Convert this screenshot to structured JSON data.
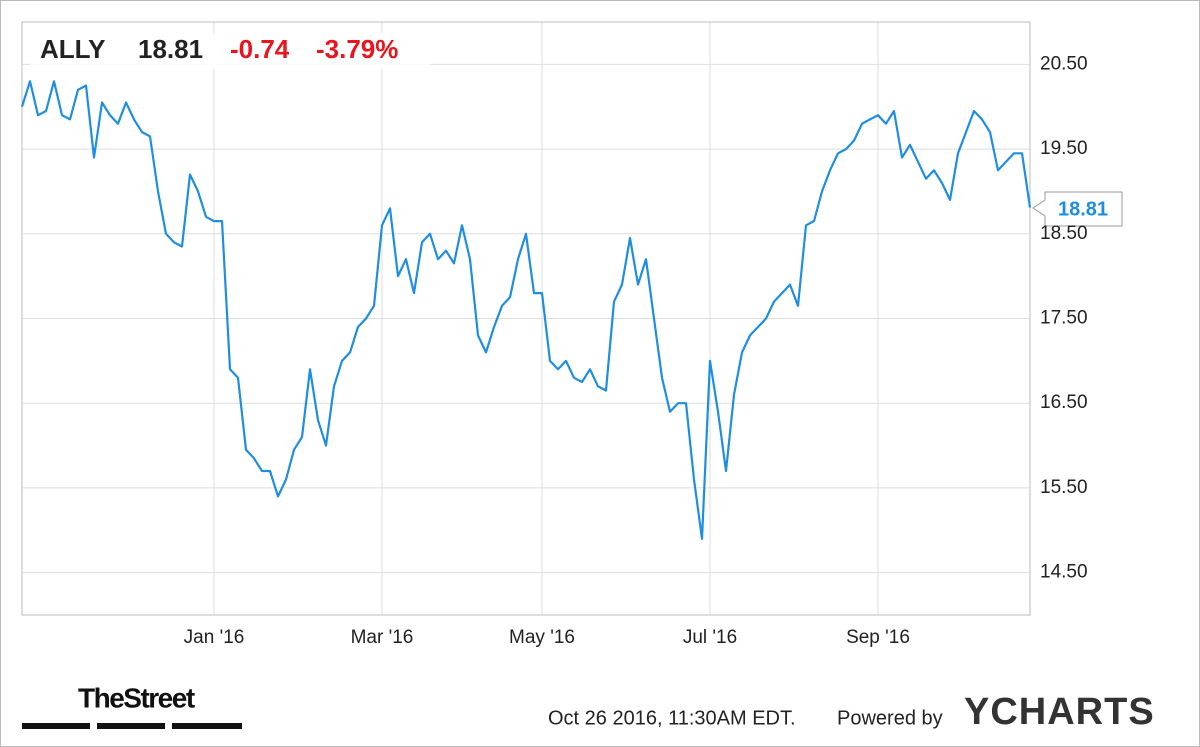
{
  "chart_data": {
    "type": "line",
    "header": {
      "change": "-0.74",
      "change_percent": "-3.79%"
    },
    "categories": [
      null,
      null,
      null,
      null,
      null,
      null,
      null,
      null,
      null,
      null,
      null,
      null,
      null,
      null,
      null,
      null,
      null,
      null,
      null,
      null,
      null,
      null,
      null,
      null,
      "Jan '16",
      null,
      null,
      null,
      null,
      null,
      null,
      null,
      null,
      null,
      null,
      null,
      null,
      null,
      null,
      null,
      null,
      null,
      null,
      null,
      null,
      "Mar '16",
      null,
      null,
      null,
      null,
      null,
      null,
      null,
      null,
      null,
      null,
      null,
      null,
      null,
      null,
      null,
      null,
      null,
      null,
      null,
      "May '16",
      null,
      null,
      null,
      null,
      null,
      null,
      null,
      null,
      null,
      null,
      null,
      null,
      null,
      null,
      null,
      null,
      null,
      null,
      null,
      null,
      "Jul '16",
      null,
      null,
      null,
      null,
      null,
      null,
      null,
      null,
      null,
      null,
      null,
      null,
      null,
      null,
      null,
      null,
      null,
      null,
      null,
      null,
      "Sep '16",
      null,
      null,
      null,
      null,
      null,
      null,
      null,
      null,
      null,
      null,
      null,
      null,
      null,
      null,
      null,
      null,
      null,
      null,
      null
    ],
    "series": [
      {
        "name": "ALLY",
        "color": "#1f8ee0",
        "values": [
          20.0,
          20.3,
          19.9,
          19.95,
          20.3,
          19.9,
          19.85,
          20.2,
          20.25,
          19.4,
          20.05,
          19.9,
          19.8,
          20.05,
          19.85,
          19.7,
          19.65,
          19.0,
          18.5,
          18.4,
          18.35,
          19.2,
          19.0,
          18.7,
          18.65,
          18.65,
          16.9,
          16.8,
          15.95,
          15.85,
          15.7,
          15.7,
          15.4,
          15.6,
          15.95,
          16.1,
          16.9,
          16.3,
          16.0,
          16.7,
          17.0,
          17.1,
          17.4,
          17.5,
          17.65,
          18.6,
          18.8,
          18.0,
          18.2,
          17.8,
          18.4,
          18.5,
          18.2,
          18.3,
          18.15,
          18.6,
          18.2,
          17.3,
          17.1,
          17.4,
          17.65,
          17.75,
          18.2,
          18.5,
          17.8,
          17.8,
          17.0,
          16.9,
          17.0,
          16.8,
          16.75,
          16.9,
          16.7,
          16.65,
          17.7,
          17.9,
          18.45,
          17.9,
          18.2,
          17.5,
          16.8,
          16.4,
          16.5,
          16.5,
          15.6,
          14.9,
          17.0,
          16.4,
          15.7,
          16.6,
          17.1,
          17.3,
          17.4,
          17.5,
          17.7,
          17.8,
          17.9,
          17.65,
          18.6,
          18.65,
          19.0,
          19.25,
          19.45,
          19.5,
          19.6,
          19.8,
          19.85,
          19.9,
          19.8,
          19.95,
          19.4,
          19.55,
          19.35,
          19.15,
          19.25,
          19.1,
          18.9,
          19.45,
          19.7,
          19.95,
          19.85,
          19.7,
          19.25,
          19.35,
          19.45,
          19.45,
          18.81
        ]
      }
    ],
    "ylim": [
      14,
      21
    ],
    "yticks": [
      {
        "value": 14.5,
        "label": "14.50"
      },
      {
        "value": 15.5,
        "label": "15.50"
      },
      {
        "value": 16.5,
        "label": "16.50"
      },
      {
        "value": 17.5,
        "label": "17.50"
      },
      {
        "value": 18.5,
        "label": "18.50"
      },
      {
        "value": 19.5,
        "label": "19.50"
      },
      {
        "value": 20.5,
        "label": "20.50"
      }
    ],
    "grid": true,
    "footer": {
      "brand": "TheStreet",
      "timestamp": "Oct 26 2016, 11:30AM EDT.",
      "powered": "Powered by",
      "provider": "YCHARTS"
    }
  }
}
